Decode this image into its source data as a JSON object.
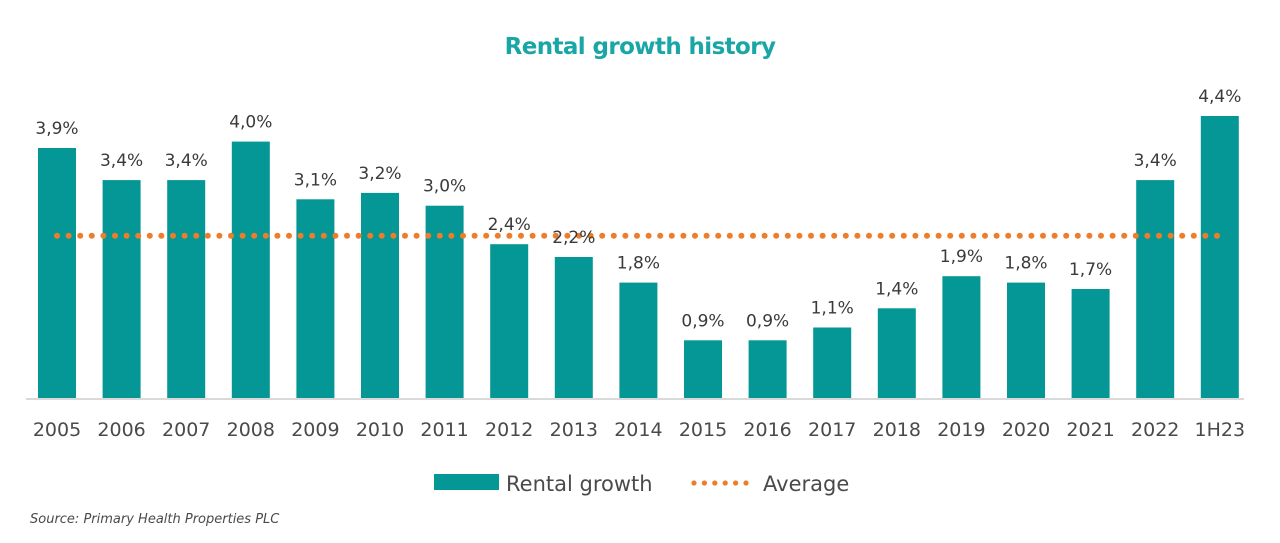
{
  "chart_data": {
    "type": "bar",
    "title": "Rental growth history",
    "xlabel": "",
    "ylabel": "",
    "ylim": [
      0,
      4.6
    ],
    "grid": false,
    "categories": [
      "2005",
      "2006",
      "2007",
      "2008",
      "2009",
      "2010",
      "2011",
      "2012",
      "2013",
      "2014",
      "2015",
      "2016",
      "2017",
      "2018",
      "2019",
      "2020",
      "2021",
      "2022",
      "1H23"
    ],
    "series": [
      {
        "name": "Rental growth",
        "kind": "bar",
        "color": "#049795",
        "values": [
          3.9,
          3.4,
          3.4,
          4.0,
          3.1,
          3.2,
          3.0,
          2.4,
          2.2,
          1.8,
          0.9,
          0.9,
          1.1,
          1.4,
          1.9,
          1.8,
          1.7,
          3.4,
          4.4
        ],
        "labels": [
          "3,9%",
          "3,4%",
          "3,4%",
          "4,0%",
          "3,1%",
          "3,2%",
          "3,0%",
          "2,4%",
          "2,2%",
          "1,8%",
          "0,9%",
          "0,9%",
          "1,1%",
          "1,4%",
          "1,9%",
          "1,8%",
          "1,7%",
          "3,4%",
          "4,4%"
        ]
      },
      {
        "name": "Average",
        "kind": "dotted-line",
        "color": "#ee7d2b",
        "value": 2.53
      }
    ],
    "legend": {
      "placement": "bottom-center",
      "items": [
        "Rental growth",
        "Average"
      ]
    },
    "source": "Source: Primary Health Properties PLC"
  }
}
